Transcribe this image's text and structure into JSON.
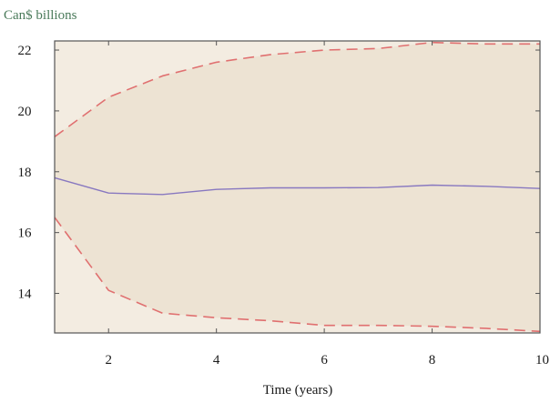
{
  "chart_data": {
    "type": "line",
    "ylabel": "Can$ billions",
    "xlabel": "Time (years)",
    "xlim": [
      1,
      10
    ],
    "ylim": [
      12.7,
      22.3
    ],
    "x_ticks": [
      2,
      4,
      6,
      8,
      10
    ],
    "y_ticks": [
      14,
      16,
      18,
      20,
      22
    ],
    "grid": false,
    "legend": "none",
    "colors": {
      "plot_background": "#f3ece1",
      "band_fill": "#ede3d3",
      "point_line": "#8878c0",
      "interval_line": "#e07070",
      "ylabel_text": "#4a7a5a"
    },
    "series": [
      {
        "role": "upper-interval",
        "style": "dashed",
        "x": [
          1,
          2,
          3,
          4,
          5,
          6,
          7,
          8,
          9,
          10
        ],
        "values": [
          19.15,
          20.45,
          21.15,
          21.6,
          21.85,
          22.0,
          22.05,
          22.25,
          22.2,
          22.2
        ]
      },
      {
        "role": "point-estimate",
        "style": "solid",
        "x": [
          1,
          2,
          3,
          4,
          5,
          6,
          7,
          8,
          9,
          10
        ],
        "values": [
          17.8,
          17.3,
          17.25,
          17.42,
          17.47,
          17.47,
          17.48,
          17.56,
          17.52,
          17.45
        ]
      },
      {
        "role": "lower-interval",
        "style": "dashed",
        "x": [
          1,
          2,
          3,
          4,
          5,
          6,
          7,
          8,
          9,
          10
        ],
        "values": [
          16.5,
          14.1,
          13.35,
          13.2,
          13.1,
          12.95,
          12.95,
          12.92,
          12.85,
          12.75
        ]
      }
    ]
  }
}
